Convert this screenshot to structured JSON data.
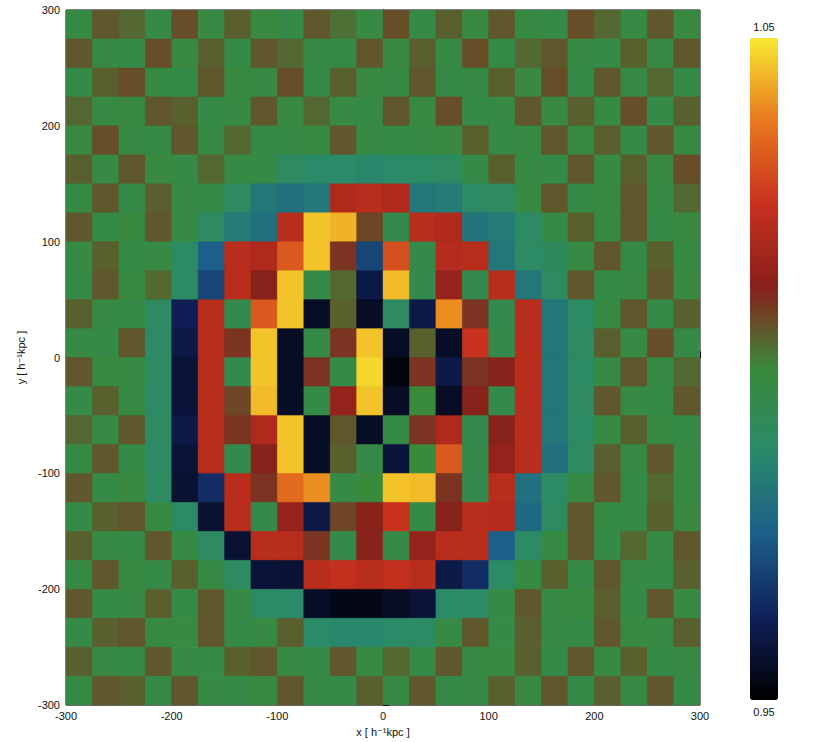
{
  "chart_data": {
    "type": "heatmap",
    "xlabel": "x [ h⁻¹kpc ]",
    "ylabel": "y [ h⁻¹kpc ]",
    "xlim": [
      -300,
      300
    ],
    "ylim": [
      -300,
      300
    ],
    "xticks": [
      -300,
      -200,
      -100,
      0,
      100,
      200,
      300
    ],
    "yticks": [
      -300,
      -200,
      -100,
      0,
      100,
      200,
      300
    ],
    "x": [
      -287.5,
      -262.5,
      -237.5,
      -212.5,
      -187.5,
      -162.5,
      -137.5,
      -112.5,
      -87.5,
      -62.5,
      -37.5,
      -12.5,
      12.5,
      37.5,
      62.5,
      87.5,
      112.5,
      137.5,
      162.5,
      187.5,
      212.5,
      237.5,
      262.5,
      287.5
    ],
    "y": [
      287.5,
      262.5,
      237.5,
      212.5,
      187.5,
      162.5,
      137.5,
      112.5,
      87.5,
      62.5,
      37.5,
      12.5,
      -12.5,
      -37.5,
      -62.5,
      -87.5,
      -112.5,
      -137.5,
      -162.5,
      -187.5,
      -212.5,
      -237.5,
      -262.5,
      -287.5
    ],
    "cells": [
      [
        0.998,
        1.006,
        1.004,
        0.997,
        1.007,
        0.998,
        1.005,
        0.999,
        0.997,
        1.006,
        1.003,
        0.998,
        1.007,
        0.997,
        1.005,
        0.999,
        1.006,
        0.998,
        0.997,
        1.007,
        1.004,
        0.998,
        1.006,
        0.999
      ],
      [
        1.006,
        0.998,
        0.997,
        1.007,
        0.999,
        1.005,
        0.997,
        1.006,
        1.004,
        0.998,
        0.997,
        1.006,
        0.999,
        1.005,
        0.998,
        1.007,
        0.997,
        1.004,
        1.006,
        0.998,
        0.997,
        1.005,
        0.998,
        1.006
      ],
      [
        0.997,
        1.005,
        1.007,
        0.998,
        0.997,
        1.006,
        0.999,
        0.998,
        1.007,
        0.997,
        1.005,
        0.999,
        0.998,
        1.006,
        0.997,
        0.998,
        1.005,
        0.999,
        1.007,
        0.997,
        1.006,
        0.998,
        1.004,
        0.997
      ],
      [
        1.004,
        0.998,
        0.999,
        1.006,
        1.005,
        0.997,
        0.998,
        1.006,
        0.999,
        1.004,
        0.998,
        0.997,
        1.006,
        0.999,
        1.007,
        0.997,
        0.998,
        1.006,
        0.999,
        1.005,
        0.998,
        1.007,
        0.997,
        1.005
      ],
      [
        0.999,
        1.007,
        0.998,
        0.997,
        1.006,
        0.998,
        1.004,
        0.997,
        0.998,
        0.999,
        1.006,
        0.998,
        0.997,
        0.998,
        0.999,
        1.005,
        0.997,
        0.998,
        1.006,
        0.999,
        1.005,
        0.997,
        1.006,
        0.998
      ],
      [
        1.005,
        0.998,
        1.006,
        0.999,
        0.997,
        1.004,
        0.998,
        0.997,
        0.99,
        0.988,
        0.988,
        0.987,
        0.988,
        0.989,
        0.99,
        0.997,
        1.005,
        0.998,
        0.997,
        1.006,
        0.998,
        1.005,
        0.999,
        1.007
      ],
      [
        0.998,
        1.006,
        0.997,
        1.005,
        0.998,
        0.997,
        0.99,
        0.982,
        0.98,
        0.982,
        1.02,
        1.022,
        1.02,
        0.982,
        0.983,
        0.989,
        0.99,
        0.998,
        1.006,
        0.997,
        0.999,
        1.006,
        0.998,
        1.004
      ],
      [
        1.006,
        0.997,
        0.999,
        1.006,
        0.998,
        0.99,
        0.983,
        0.98,
        1.022,
        1.046,
        1.044,
        1.008,
        0.995,
        1.022,
        1.02,
        0.981,
        0.983,
        0.989,
        0.997,
        1.005,
        0.998,
        1.006,
        0.997,
        0.999
      ],
      [
        0.998,
        1.005,
        0.997,
        0.998,
        0.989,
        0.975,
        1.022,
        1.02,
        1.032,
        1.046,
        1.01,
        0.97,
        1.03,
        0.996,
        1.021,
        1.022,
        0.982,
        0.989,
        0.991,
        0.998,
        1.006,
        0.997,
        1.005,
        0.998
      ],
      [
        0.997,
        1.006,
        0.999,
        1.004,
        0.989,
        0.97,
        1.022,
        1.012,
        1.046,
        0.997,
        1.004,
        0.96,
        1.045,
        0.995,
        1.015,
        0.995,
        1.022,
        0.982,
        0.99,
        1.006,
        0.997,
        0.998,
        1.006,
        0.999
      ],
      [
        1.005,
        0.998,
        0.997,
        0.99,
        0.962,
        1.022,
        0.995,
        1.032,
        1.046,
        0.955,
        1.005,
        0.955,
        0.99,
        0.96,
        1.04,
        1.01,
        0.995,
        1.022,
        0.982,
        0.989,
        0.998,
        1.006,
        0.997,
        1.005
      ],
      [
        0.998,
        0.997,
        1.006,
        0.989,
        0.96,
        1.022,
        1.01,
        1.046,
        0.955,
        0.997,
        1.01,
        1.046,
        0.955,
        1.005,
        0.955,
        1.025,
        0.996,
        1.022,
        0.982,
        0.99,
        1.005,
        0.998,
        1.007,
        0.997
      ],
      [
        1.006,
        0.999,
        0.998,
        0.99,
        0.958,
        1.022,
        0.995,
        1.046,
        0.955,
        1.01,
        0.997,
        1.048,
        0.952,
        1.01,
        0.96,
        1.01,
        1.012,
        1.022,
        0.982,
        0.989,
        0.997,
        1.006,
        0.998,
        1.004
      ],
      [
        0.997,
        1.005,
        0.998,
        0.989,
        0.958,
        1.022,
        1.008,
        1.045,
        0.955,
        0.997,
        1.015,
        1.046,
        0.955,
        1.0,
        0.955,
        1.012,
        0.996,
        1.022,
        0.982,
        0.99,
        1.006,
        0.998,
        0.997,
        1.006
      ],
      [
        1.004,
        0.998,
        1.006,
        0.99,
        0.96,
        1.022,
        1.01,
        1.02,
        1.046,
        0.955,
        1.006,
        0.955,
        0.997,
        1.01,
        1.02,
        0.995,
        1.012,
        1.022,
        0.982,
        0.989,
        0.998,
        1.005,
        0.999,
        0.997
      ],
      [
        0.998,
        1.006,
        0.997,
        0.989,
        0.958,
        1.022,
        0.995,
        1.012,
        1.046,
        0.955,
        1.005,
        0.997,
        0.958,
        1.0,
        1.032,
        0.996,
        1.015,
        1.022,
        0.98,
        0.99,
        1.005,
        0.998,
        1.006,
        0.998
      ],
      [
        1.006,
        0.997,
        0.999,
        0.99,
        0.957,
        0.965,
        1.022,
        1.01,
        1.035,
        1.04,
        0.997,
        1.0,
        1.046,
        1.045,
        1.01,
        0.995,
        1.022,
        0.98,
        0.989,
        0.998,
        1.006,
        0.997,
        1.004,
        0.998
      ],
      [
        0.997,
        1.005,
        1.006,
        0.998,
        0.989,
        0.957,
        1.022,
        0.996,
        1.015,
        0.96,
        1.008,
        1.012,
        1.025,
        0.997,
        1.012,
        1.022,
        1.021,
        0.978,
        0.99,
        1.006,
        0.998,
        0.997,
        1.005,
        0.999
      ],
      [
        1.005,
        0.998,
        0.997,
        1.006,
        0.998,
        0.99,
        0.957,
        1.022,
        1.022,
        1.01,
        0.996,
        1.012,
        0.997,
        1.015,
        1.022,
        1.022,
        0.975,
        0.989,
        0.998,
        1.006,
        0.997,
        1.004,
        0.998,
        1.006
      ],
      [
        0.998,
        1.006,
        0.999,
        0.997,
        1.005,
        0.998,
        0.99,
        0.958,
        0.957,
        1.022,
        1.024,
        1.022,
        1.024,
        1.022,
        0.96,
        0.965,
        0.989,
        0.998,
        1.005,
        0.997,
        1.006,
        0.998,
        0.997,
        1.005
      ],
      [
        1.006,
        0.997,
        0.998,
        1.005,
        0.997,
        1.006,
        0.998,
        0.989,
        0.988,
        0.955,
        0.953,
        0.953,
        0.955,
        0.958,
        0.988,
        0.989,
        0.997,
        1.006,
        0.998,
        0.999,
        1.005,
        0.997,
        1.006,
        0.998
      ],
      [
        0.997,
        1.005,
        1.006,
        0.998,
        0.999,
        1.006,
        0.997,
        0.998,
        1.005,
        0.988,
        0.987,
        0.987,
        0.988,
        0.989,
        0.998,
        1.006,
        0.997,
        1.005,
        0.998,
        0.997,
        1.006,
        0.999,
        0.998,
        1.005
      ],
      [
        1.005,
        0.998,
        0.997,
        1.006,
        0.998,
        0.997,
        1.005,
        1.006,
        0.998,
        0.997,
        1.006,
        0.998,
        1.004,
        0.997,
        1.006,
        0.998,
        0.999,
        1.005,
        0.997,
        1.006,
        0.998,
        1.005,
        0.997,
        0.998
      ],
      [
        0.998,
        1.006,
        1.005,
        0.997,
        1.006,
        0.998,
        0.997,
        0.999,
        1.006,
        0.998,
        0.997,
        1.005,
        0.998,
        1.006,
        0.997,
        0.998,
        1.005,
        0.999,
        1.006,
        0.997,
        1.005,
        0.998,
        1.006,
        0.997
      ]
    ],
    "colorbar_range": [
      0.95,
      1.05
    ],
    "colorbar_ticks": [
      0.95,
      1.05
    ]
  }
}
